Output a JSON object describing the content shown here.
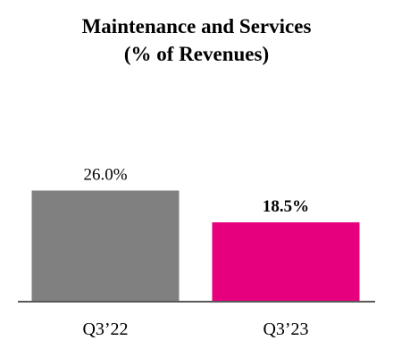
{
  "chart_data": {
    "type": "bar",
    "title": [
      "Maintenance and Services",
      "(% of Revenues)"
    ],
    "categories": [
      "Q3’22",
      "Q3’23"
    ],
    "values": [
      26.0,
      18.5
    ],
    "data_labels": [
      "26.0%",
      "18.5%"
    ],
    "data_label_bold": [
      false,
      true
    ],
    "colors": [
      "#808080",
      "#e6007e"
    ],
    "ylim": [
      0,
      40
    ],
    "xlabel": "",
    "ylabel": "",
    "grid": false,
    "legend": "none",
    "axis_color": "#595959"
  }
}
